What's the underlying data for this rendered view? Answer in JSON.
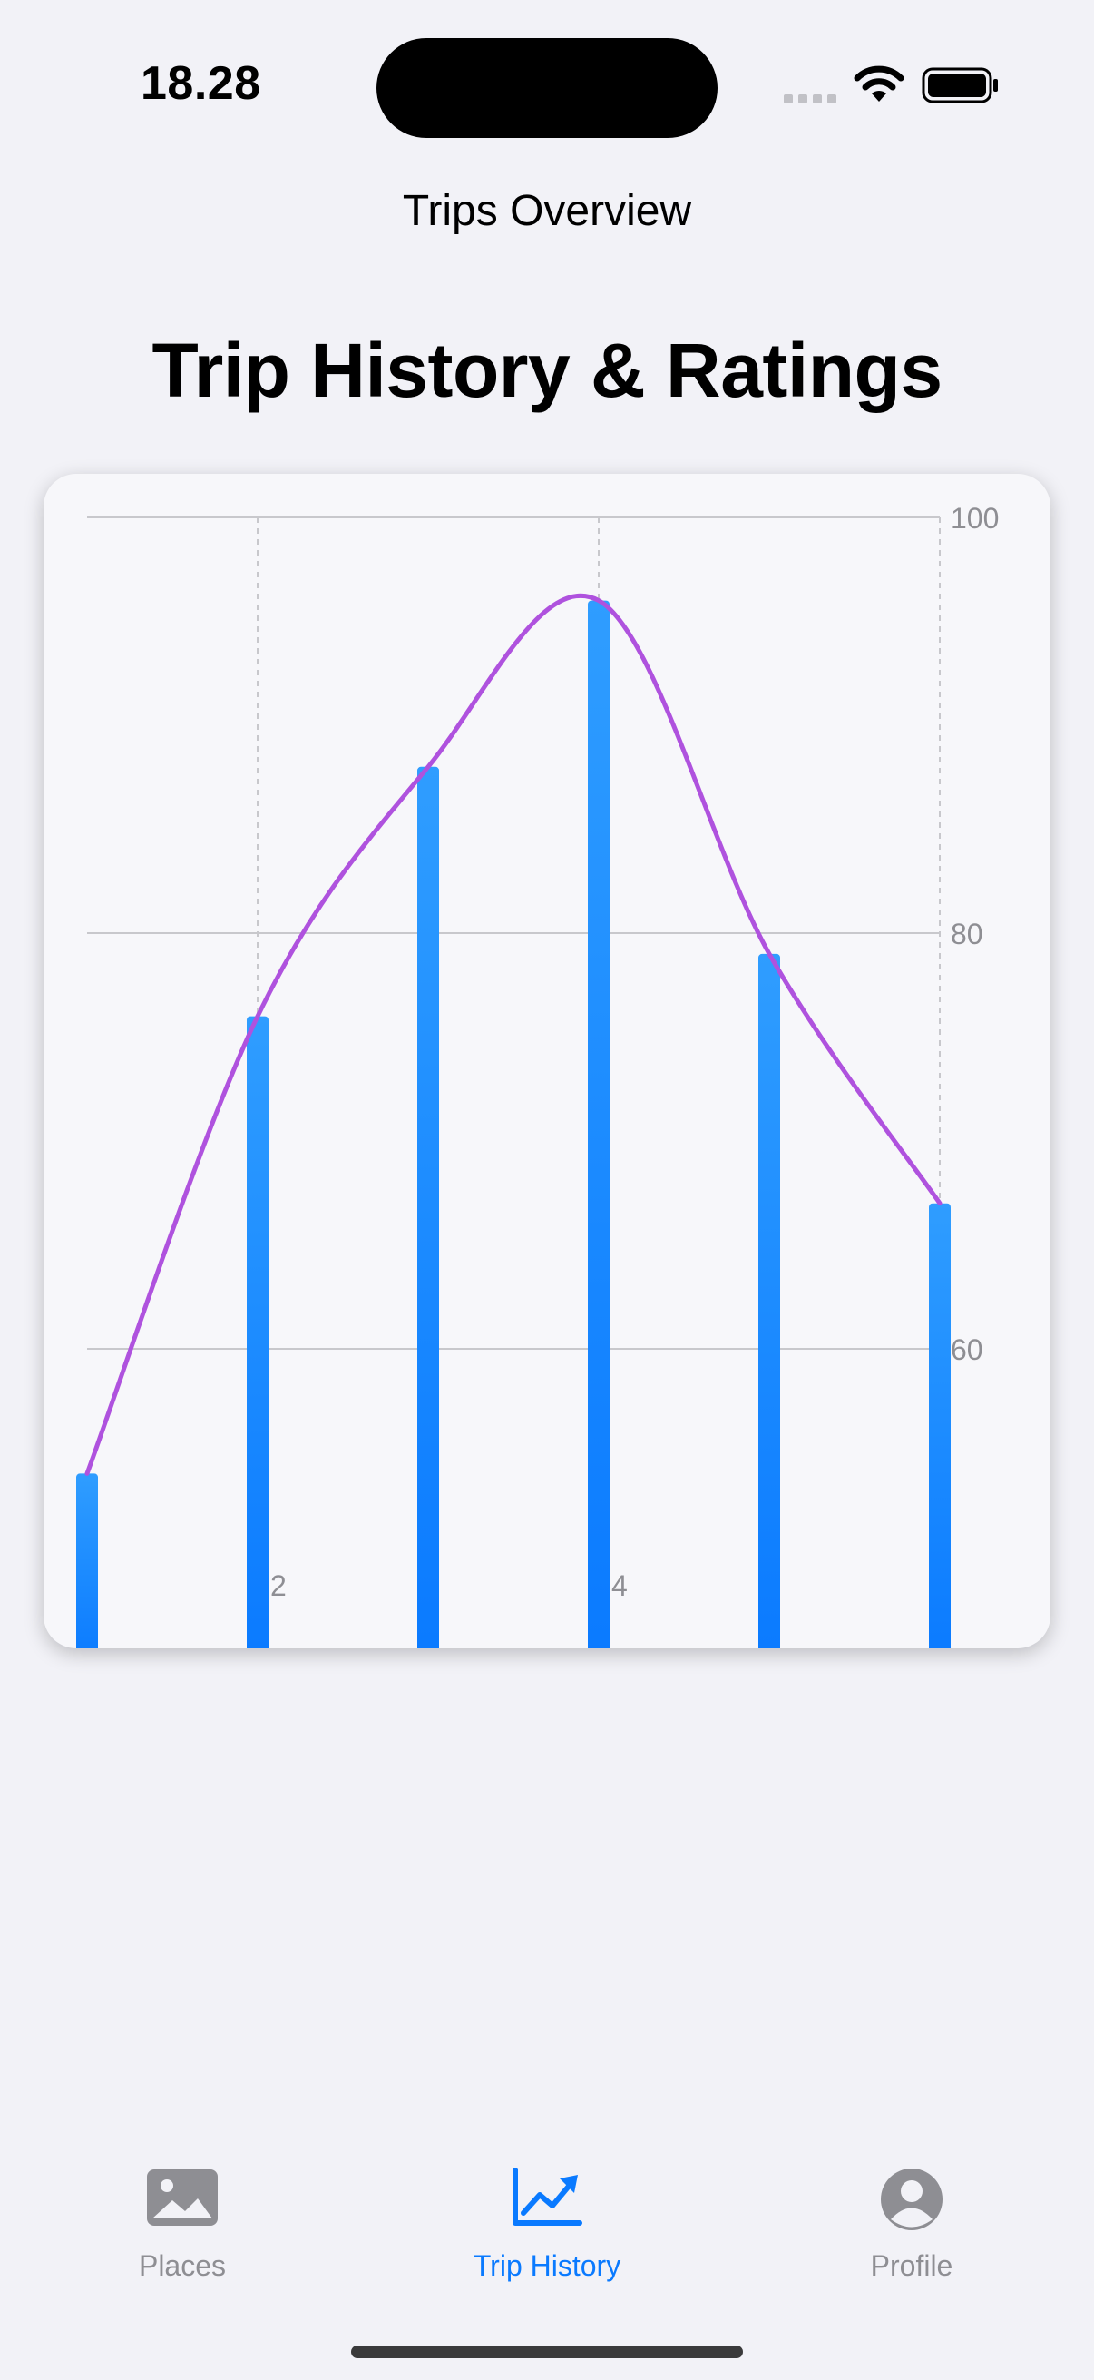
{
  "status_bar": {
    "time": "18.28"
  },
  "nav": {
    "title": "Trips Overview"
  },
  "page": {
    "title": "Trip History & Ratings"
  },
  "colors": {
    "bar": "#1a87ff",
    "line": "#af52de",
    "accent": "#0a7aff",
    "inactive": "#8e8e93"
  },
  "chart_data": {
    "type": "bar",
    "x": [
      1,
      2,
      3,
      4,
      5,
      6
    ],
    "values": [
      54,
      76,
      88,
      96,
      79,
      67
    ],
    "line_values": [
      54,
      76,
      88,
      96,
      79,
      67
    ],
    "y_ticks": [
      "100",
      "80",
      "60"
    ],
    "x_ticks": [
      "2",
      "4"
    ],
    "ylim": [
      45,
      100
    ],
    "grid": true
  },
  "tabs": [
    {
      "label": "Places",
      "icon": "photo-icon",
      "active": false
    },
    {
      "label": "Trip History",
      "icon": "chart-line-uptrend-icon",
      "active": true
    },
    {
      "label": "Profile",
      "icon": "person-circle-icon",
      "active": false
    }
  ]
}
